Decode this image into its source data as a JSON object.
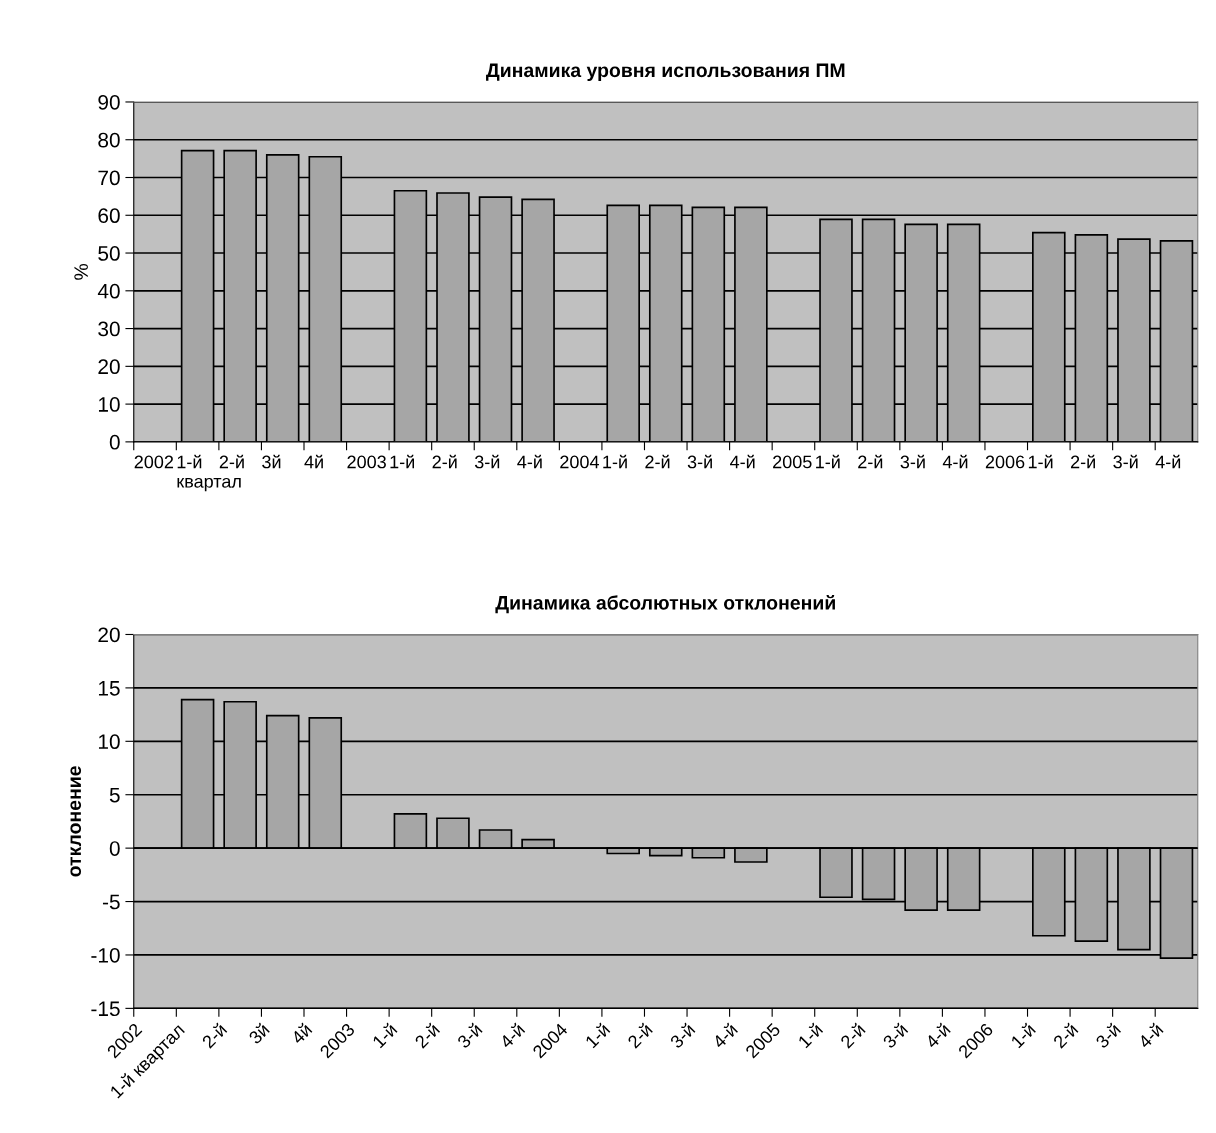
{
  "chart_data": [
    {
      "type": "bar",
      "title": "Динамика уровня использования ПМ",
      "ylabel": "%",
      "categories": [
        "2002",
        "1-й\nквартал",
        "2-й",
        "3й",
        "4й",
        "2003",
        "1-й",
        "2-й",
        "3-й",
        "4-й",
        "2004",
        "1-й",
        "2-й",
        "3-й",
        "4-й",
        "2005",
        "1-й",
        "2-й",
        "3-й",
        "4-й",
        "2006",
        "1-й",
        "2-й",
        "3-й",
        "4-й"
      ],
      "series": [
        {
          "color": "#a6a6a6",
          "values": [
            null,
            77.1,
            77.1,
            76.0,
            75.5,
            null,
            66.5,
            65.9,
            64.8,
            64.2,
            null,
            62.6,
            62.6,
            62.1,
            62.1,
            null,
            58.9,
            58.9,
            57.6,
            57.6,
            null,
            55.4,
            54.8,
            53.7,
            53.2
          ]
        }
      ],
      "ylim": [
        0,
        90
      ],
      "yticks": [
        0,
        10,
        20,
        30,
        40,
        50,
        60,
        70,
        80,
        90
      ],
      "grid": "y",
      "legend": false
    },
    {
      "type": "bar",
      "title": "Динамика абсолютных отклонений",
      "ylabel": "отклонение",
      "categories": [
        "2002",
        "1-й квартал",
        "2-й",
        "3й",
        "4й",
        "2003",
        "1-й",
        "2-й",
        "3-й",
        "4-й",
        "2004",
        "1-й",
        "2-й",
        "3-й",
        "4-й",
        "2005",
        "1-й",
        "2-й",
        "3-й",
        "4-й",
        "2006",
        "1-й",
        "2-й",
        "3-й",
        "4-й"
      ],
      "series": [
        {
          "color": "#a6a6a6",
          "values": [
            null,
            13.9,
            13.7,
            12.4,
            12.2,
            null,
            3.2,
            2.8,
            1.7,
            0.8,
            null,
            -0.5,
            -0.7,
            -0.9,
            -1.3,
            null,
            -4.6,
            -4.8,
            -5.8,
            -5.8,
            null,
            -8.2,
            -8.7,
            -9.5,
            -10.3
          ]
        }
      ],
      "ylim": [
        -15,
        20
      ],
      "yticks": [
        -15,
        -10,
        -5,
        0,
        5,
        10,
        15,
        20
      ],
      "grid": "y",
      "legend": false
    }
  ]
}
